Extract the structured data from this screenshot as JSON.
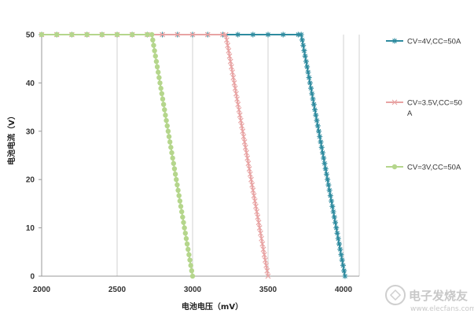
{
  "chart_data": {
    "type": "line",
    "title": "",
    "xlabel": "电池电压（mV）",
    "ylabel": "电池电流（V）",
    "xlim": [
      2000,
      4100
    ],
    "ylim": [
      0,
      50
    ],
    "xticks": [
      "2000",
      "2500",
      "3000",
      "3500",
      "4000"
    ],
    "yticks": [
      "0",
      "10",
      "20",
      "30",
      "40",
      "50"
    ],
    "grid": "vertical",
    "legend_position": "right",
    "series": [
      {
        "name": "CV=4V,CC=50A",
        "color": "#2e8b9f",
        "marker": "asterisk",
        "x": [
          2000,
          2100,
          2200,
          2300,
          2400,
          2500,
          2600,
          2700,
          2800,
          2900,
          3000,
          3100,
          3200,
          3300,
          3400,
          3500,
          3600,
          3700,
          3720,
          4010
        ],
        "y": [
          50,
          50,
          50,
          50,
          50,
          50,
          50,
          50,
          50,
          50,
          50,
          50,
          50,
          50,
          50,
          50,
          50,
          50,
          50,
          0
        ]
      },
      {
        "name": "CV=3.5V,CC=50A",
        "color": "#e8a3a3",
        "marker": "x",
        "x": [
          2000,
          2100,
          2200,
          2300,
          2400,
          2500,
          2600,
          2700,
          2800,
          2900,
          3000,
          3100,
          3200,
          3220,
          3500
        ],
        "y": [
          50,
          50,
          50,
          50,
          50,
          50,
          50,
          50,
          50,
          50,
          50,
          50,
          50,
          50,
          0
        ]
      },
      {
        "name": "CV=3V,CC=50A",
        "color": "#b5d68c",
        "marker": "circle",
        "x": [
          2000,
          2100,
          2200,
          2300,
          2400,
          2500,
          2600,
          2700,
          2730,
          3000
        ],
        "y": [
          50,
          50,
          50,
          50,
          50,
          50,
          50,
          50,
          50,
          0
        ]
      }
    ]
  },
  "legend": [
    {
      "line1": "CV=4V,CC=50A",
      "line2": ""
    },
    {
      "line1": "CV=3.5V,CC=50",
      "line2": "A"
    },
    {
      "line1": "CV=3V,CC=50A",
      "line2": ""
    }
  ],
  "watermark": {
    "name": "电子发烧友",
    "site": "www.elecfans.com",
    "color": "#c8c8c8"
  }
}
